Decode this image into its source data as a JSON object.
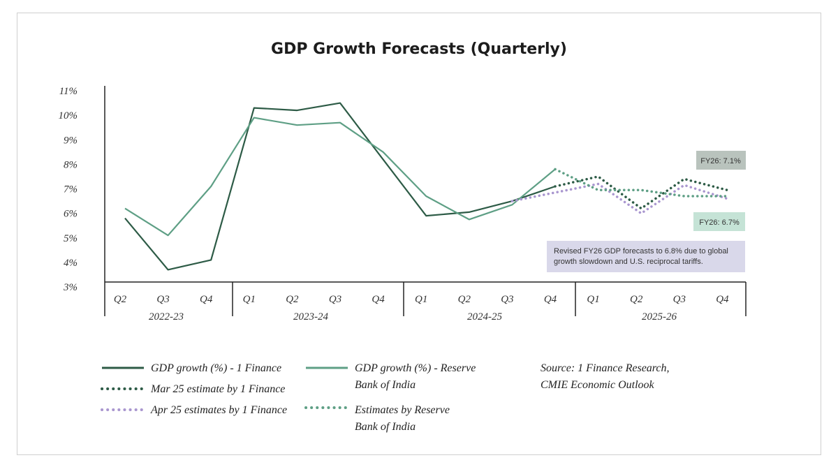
{
  "colors": {
    "dark_green": "#2d5b46",
    "teal": "#5e9f85",
    "purple": "#a996cf",
    "fy26_71_bg": "#b9c3bd",
    "fy26_67_bg": "#c5e3d6",
    "note_bg": "#d9d8ea"
  },
  "chart_data": {
    "type": "line",
    "title": "GDP Growth Forecasts (Quarterly)",
    "yticks": [
      "3%",
      "4%",
      "5%",
      "6%",
      "7%",
      "8%",
      "9%",
      "10%",
      "11%"
    ],
    "ylim": [
      3,
      11
    ],
    "quarters": [
      "Q2",
      "Q3",
      "Q4",
      "Q1",
      "Q2",
      "Q3",
      "Q4",
      "Q1",
      "Q2",
      "Q3",
      "Q4",
      "Q1",
      "Q2",
      "Q3",
      "Q4"
    ],
    "years": [
      "2022-23",
      "2023-24",
      "2024-25",
      "2025-26"
    ],
    "grid": false,
    "series": [
      {
        "name": "GDP growth (%) - 1 Finance",
        "style": "solid",
        "color": "#2d5b46",
        "points": [
          [
            0,
            5.8
          ],
          [
            1,
            3.7
          ],
          [
            2,
            4.1
          ],
          [
            3,
            10.3
          ],
          [
            4,
            10.2
          ],
          [
            5,
            10.5
          ],
          [
            6,
            8.2
          ],
          [
            7,
            5.9
          ],
          [
            8,
            6.05
          ],
          [
            9,
            6.5
          ],
          [
            10,
            7.1
          ]
        ]
      },
      {
        "name": "GDP growth (%) - Reserve Bank of India",
        "style": "solid",
        "color": "#5e9f85",
        "points": [
          [
            0,
            6.2
          ],
          [
            1,
            5.1
          ],
          [
            2,
            7.1
          ],
          [
            3,
            9.9
          ],
          [
            4,
            9.6
          ],
          [
            5,
            9.7
          ],
          [
            6,
            8.5
          ],
          [
            7,
            6.7
          ],
          [
            8,
            5.75
          ],
          [
            9,
            6.35
          ],
          [
            10,
            7.8
          ]
        ]
      },
      {
        "name": "Mar 25 estimate by 1 Finance",
        "style": "dotted",
        "color": "#2d5b46",
        "points": [
          [
            10,
            7.1
          ],
          [
            11,
            7.5
          ],
          [
            12,
            6.2
          ],
          [
            13,
            7.4
          ],
          [
            14,
            6.95
          ]
        ]
      },
      {
        "name": "Apr 25 estimates by 1 Finance",
        "style": "dotted",
        "color": "#a996cf",
        "points": [
          [
            9,
            6.5
          ],
          [
            10,
            6.85
          ],
          [
            11,
            7.2
          ],
          [
            12,
            6.0
          ],
          [
            13,
            7.15
          ],
          [
            14,
            6.6
          ]
        ]
      },
      {
        "name": "Estimates by Reserve Bank of India",
        "style": "dotted",
        "color": "#5e9f85",
        "points": [
          [
            10,
            7.8
          ],
          [
            11,
            6.95
          ],
          [
            12,
            6.95
          ],
          [
            13,
            6.7
          ],
          [
            14,
            6.7
          ]
        ]
      }
    ],
    "annotations": {
      "fy26_71": "FY26: 7.1%",
      "fy26_67": "FY26: 6.7%",
      "note_line1": "Revised FY26 GDP forecasts to 6.8% due to global",
      "note_line2": "growth slowdown and U.S. reciprocal tariffs."
    },
    "legend": {
      "item1": "GDP growth (%) - 1 Finance",
      "item2_line1": "GDP growth (%) - Reserve",
      "item2_line2": "Bank of India",
      "item3": "Mar 25 estimate by 1 Finance",
      "item4": "Apr 25 estimates by 1 Finance",
      "item5_line1": "Estimates by Reserve",
      "item5_line2": "Bank of India",
      "source_line1": "Source: 1 Finance Research,",
      "source_line2": "CMIE Economic Outlook"
    }
  }
}
